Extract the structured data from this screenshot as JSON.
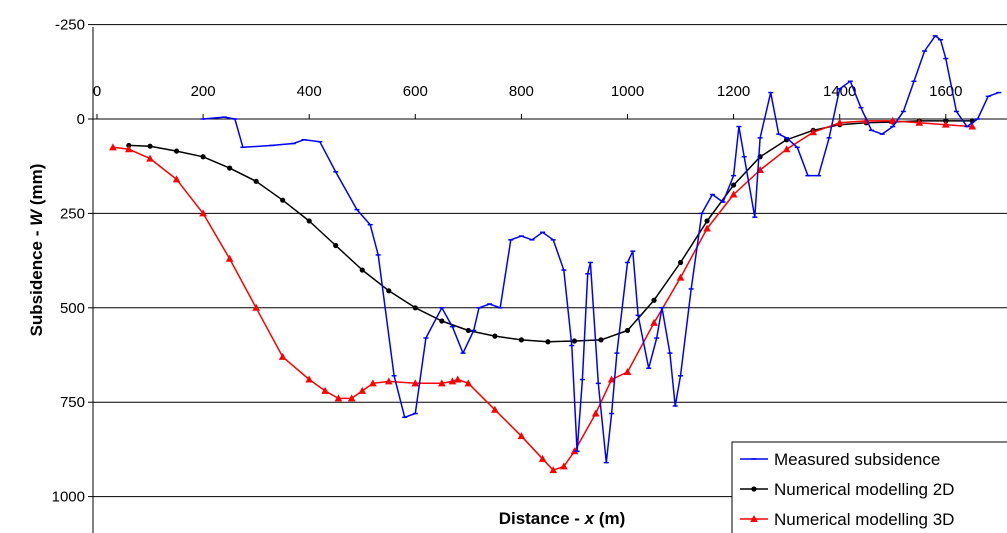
{
  "chart_data": {
    "type": "line",
    "title": "",
    "xlabel": {
      "prefix": "Distance - ",
      "var": "x",
      "suffix": " (m)"
    },
    "ylabel": {
      "prefix": "Subsidence - ",
      "var": "W",
      "suffix": " (mm)"
    },
    "xlim": [
      0,
      1700
    ],
    "ylim": [
      -250,
      1000
    ],
    "y_inverted": true,
    "grid": "horizontal",
    "legend_position": "bottom-right",
    "xticks": [
      "0",
      "200",
      "400",
      "600",
      "800",
      "1000",
      "1200",
      "1400",
      "1600"
    ],
    "yticks": [
      "-250",
      "0",
      "250",
      "500",
      "750",
      "1000"
    ],
    "series": [
      {
        "name": "Measured subsidence",
        "color": "#0000ff",
        "marker": "dash",
        "points": [
          [
            200,
            0
          ],
          [
            240,
            -5
          ],
          [
            260,
            0
          ],
          [
            275,
            75
          ],
          [
            330,
            70
          ],
          [
            370,
            65
          ],
          [
            390,
            55
          ],
          [
            420,
            60
          ],
          [
            450,
            140
          ],
          [
            490,
            240
          ],
          [
            515,
            280
          ],
          [
            530,
            360
          ],
          [
            560,
            680
          ],
          [
            580,
            790
          ],
          [
            600,
            780
          ],
          [
            620,
            580
          ],
          [
            650,
            500
          ],
          [
            670,
            550
          ],
          [
            690,
            620
          ],
          [
            710,
            560
          ],
          [
            720,
            500
          ],
          [
            740,
            490
          ],
          [
            760,
            500
          ],
          [
            780,
            320
          ],
          [
            800,
            310
          ],
          [
            820,
            320
          ],
          [
            840,
            300
          ],
          [
            860,
            320
          ],
          [
            880,
            400
          ],
          [
            895,
            600
          ],
          [
            905,
            880
          ],
          [
            915,
            690
          ],
          [
            925,
            410
          ],
          [
            930,
            380
          ],
          [
            945,
            700
          ],
          [
            960,
            910
          ],
          [
            970,
            780
          ],
          [
            980,
            620
          ],
          [
            1000,
            380
          ],
          [
            1010,
            350
          ],
          [
            1020,
            520
          ],
          [
            1040,
            660
          ],
          [
            1055,
            580
          ],
          [
            1065,
            500
          ],
          [
            1080,
            620
          ],
          [
            1090,
            760
          ],
          [
            1100,
            680
          ],
          [
            1120,
            450
          ],
          [
            1140,
            250
          ],
          [
            1160,
            200
          ],
          [
            1180,
            220
          ],
          [
            1200,
            150
          ],
          [
            1210,
            20
          ],
          [
            1220,
            100
          ],
          [
            1240,
            260
          ],
          [
            1250,
            50
          ],
          [
            1270,
            -70
          ],
          [
            1285,
            40
          ],
          [
            1300,
            50
          ],
          [
            1320,
            75
          ],
          [
            1340,
            150
          ],
          [
            1360,
            150
          ],
          [
            1380,
            50
          ],
          [
            1400,
            -80
          ],
          [
            1420,
            -100
          ],
          [
            1440,
            -30
          ],
          [
            1460,
            30
          ],
          [
            1480,
            40
          ],
          [
            1500,
            20
          ],
          [
            1520,
            -20
          ],
          [
            1540,
            -100
          ],
          [
            1560,
            -180
          ],
          [
            1580,
            -220
          ],
          [
            1590,
            -210
          ],
          [
            1600,
            -160
          ],
          [
            1620,
            -20
          ],
          [
            1640,
            20
          ],
          [
            1660,
            0
          ],
          [
            1680,
            -60
          ],
          [
            1700,
            -70
          ]
        ]
      },
      {
        "name": "Numerical modelling 2D",
        "color": "#000000",
        "marker": "circle",
        "points": [
          [
            60,
            70
          ],
          [
            100,
            72
          ],
          [
            150,
            85
          ],
          [
            200,
            100
          ],
          [
            250,
            130
          ],
          [
            300,
            165
          ],
          [
            350,
            215
          ],
          [
            400,
            270
          ],
          [
            450,
            335
          ],
          [
            500,
            400
          ],
          [
            550,
            455
          ],
          [
            600,
            500
          ],
          [
            650,
            535
          ],
          [
            700,
            560
          ],
          [
            750,
            575
          ],
          [
            800,
            585
          ],
          [
            850,
            590
          ],
          [
            900,
            588
          ],
          [
            950,
            585
          ],
          [
            1000,
            560
          ],
          [
            1050,
            480
          ],
          [
            1100,
            380
          ],
          [
            1150,
            270
          ],
          [
            1200,
            175
          ],
          [
            1250,
            100
          ],
          [
            1300,
            55
          ],
          [
            1350,
            30
          ],
          [
            1400,
            15
          ],
          [
            1450,
            10
          ],
          [
            1500,
            8
          ],
          [
            1550,
            5
          ],
          [
            1600,
            5
          ],
          [
            1650,
            5
          ]
        ]
      },
      {
        "name": "Numerical modelling 3D",
        "color": "#ff0000",
        "marker": "triangle",
        "points": [
          [
            30,
            75
          ],
          [
            60,
            80
          ],
          [
            100,
            105
          ],
          [
            150,
            160
          ],
          [
            200,
            250
          ],
          [
            250,
            370
          ],
          [
            300,
            500
          ],
          [
            350,
            630
          ],
          [
            400,
            690
          ],
          [
            430,
            720
          ],
          [
            455,
            740
          ],
          [
            480,
            740
          ],
          [
            500,
            720
          ],
          [
            520,
            700
          ],
          [
            550,
            695
          ],
          [
            600,
            700
          ],
          [
            650,
            700
          ],
          [
            670,
            695
          ],
          [
            680,
            690
          ],
          [
            700,
            700
          ],
          [
            750,
            770
          ],
          [
            800,
            840
          ],
          [
            840,
            900
          ],
          [
            860,
            930
          ],
          [
            880,
            920
          ],
          [
            900,
            880
          ],
          [
            940,
            780
          ],
          [
            970,
            690
          ],
          [
            1000,
            670
          ],
          [
            1050,
            540
          ],
          [
            1100,
            420
          ],
          [
            1150,
            290
          ],
          [
            1200,
            200
          ],
          [
            1250,
            135
          ],
          [
            1300,
            80
          ],
          [
            1350,
            35
          ],
          [
            1400,
            10
          ],
          [
            1450,
            5
          ],
          [
            1500,
            5
          ],
          [
            1550,
            10
          ],
          [
            1600,
            15
          ],
          [
            1650,
            20
          ]
        ]
      }
    ]
  }
}
